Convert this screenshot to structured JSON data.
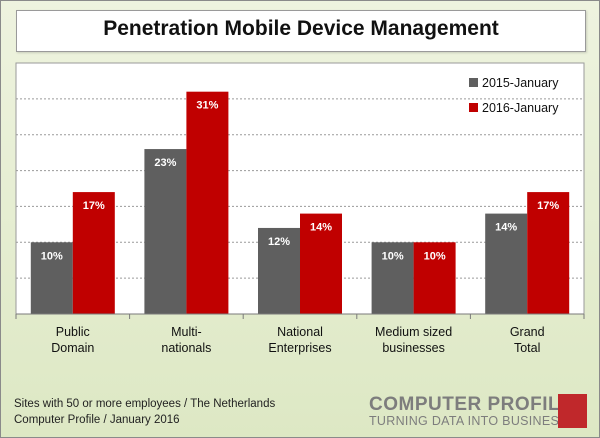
{
  "title": "Penetration Mobile Device Management",
  "footnote": {
    "line1": "Sites with 50 or more employees / The Netherlands",
    "line2": "Computer Profile / January 2016"
  },
  "logo": {
    "name": "COMPUTER PROFILE",
    "tagline": "TURNING DATA INTO BUSINESS"
  },
  "colors": {
    "series_2015": "#5f5f5f",
    "series_2016": "#c00000",
    "background": "#e4ecd0",
    "plot": "#ffffff",
    "logo_accent": "#c0282b"
  },
  "chart_data": {
    "type": "bar",
    "title": "Penetration Mobile Device Management",
    "categories": [
      [
        "Public",
        "Domain"
      ],
      [
        "Multi-",
        "nationals"
      ],
      [
        "National",
        "Enterprises"
      ],
      [
        "Medium sized",
        "businesses"
      ],
      [
        "Grand",
        "Total"
      ]
    ],
    "series": [
      {
        "name": "2015-January",
        "values": [
          10,
          23,
          12,
          10,
          14
        ],
        "labels": [
          "10%",
          "23%",
          "12%",
          "10%",
          "14%"
        ],
        "color": "#5f5f5f"
      },
      {
        "name": "2016-January",
        "values": [
          17,
          31,
          14,
          10,
          17
        ],
        "labels": [
          "17%",
          "31%",
          "14%",
          "10%",
          "17%"
        ],
        "color": "#c00000"
      }
    ],
    "ylim": [
      0,
      35
    ],
    "y_gridlines": [
      0,
      5,
      10,
      15,
      20,
      25,
      30,
      35
    ],
    "grid": true,
    "legend_position": "top-right",
    "value_unit": "%"
  }
}
